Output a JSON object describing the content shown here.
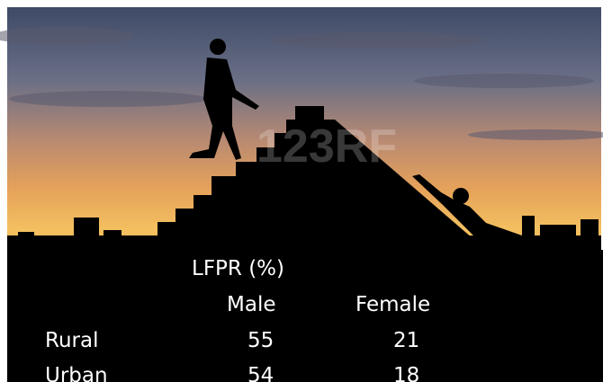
{
  "watermark": "123RF",
  "table": {
    "title": "LFPR (%)",
    "columns": [
      "Male",
      "Female"
    ],
    "rows": [
      {
        "label": "Rural",
        "values": [
          55,
          21
        ]
      },
      {
        "label": "Urban",
        "values": [
          54,
          18
        ]
      }
    ]
  }
}
